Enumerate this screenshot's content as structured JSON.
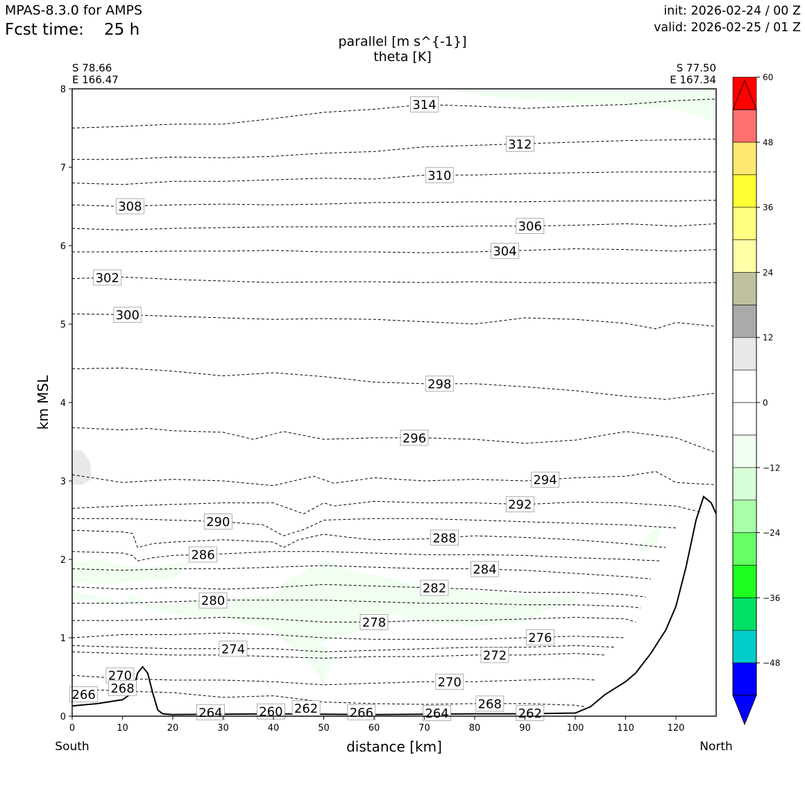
{
  "header": {
    "model": "MPAS-8.3.0 for AMPS",
    "fcst_label": "Fcst time:",
    "fcst_value": "25 h",
    "init": "init: 2026-02-24 / 00 Z",
    "valid": "valid: 2026-02-25 / 01 Z"
  },
  "title_line1": "parallel [m s^{-1}]",
  "title_line2": "theta [K]",
  "endpoints": {
    "left_lat": "S 78.66",
    "left_lon": "E 166.47",
    "right_lat": "S 77.50",
    "right_lon": "E 167.34",
    "south": "South",
    "north": "North"
  },
  "chart_data": {
    "type": "contour",
    "xlabel": "distance [km]",
    "ylabel": "km MSL",
    "xlim": [
      0,
      128
    ],
    "ylim": [
      0,
      8
    ],
    "xticks": [
      0,
      10,
      20,
      30,
      40,
      50,
      60,
      70,
      80,
      90,
      100,
      110,
      120
    ],
    "yticks": [
      0,
      1,
      2,
      3,
      4,
      5,
      6,
      7,
      8
    ],
    "colorbar": {
      "min": -54,
      "max": 54,
      "step": 6,
      "tick_values": [
        -48,
        -36,
        -24,
        -12,
        0,
        12,
        24,
        36,
        48,
        60
      ],
      "tick_labels": [
        "−48",
        "−36",
        "−24",
        "−12",
        "0",
        "12",
        "24",
        "36",
        "48",
        "60"
      ],
      "colors": [
        "#0000ff",
        "#00cccc",
        "#00e066",
        "#1fff1f",
        "#66ff66",
        "#aaffaa",
        "#d8ffd8",
        "#f1fff1",
        "#ffffff",
        "#ffffff",
        "#e8e8e8",
        "#aaaaaa",
        "#c0c0a0",
        "#ffffa8",
        "#ffff80",
        "#ffff33",
        "#ffe870",
        "#ff7070",
        "#ff0000"
      ],
      "under_color": "#0000ff",
      "over_color": "#ff0000"
    },
    "terrain": {
      "x": [
        0,
        5,
        10,
        12,
        13,
        14,
        15,
        16,
        17,
        18,
        20,
        40,
        60,
        80,
        90,
        100,
        103,
        106,
        108,
        110,
        112,
        115,
        118,
        120,
        122,
        124,
        125.5,
        127,
        128
      ],
      "y": [
        0.13,
        0.16,
        0.21,
        0.3,
        0.55,
        0.63,
        0.55,
        0.3,
        0.08,
        0.03,
        0.02,
        0.03,
        0.02,
        0.03,
        0.03,
        0.04,
        0.12,
        0.28,
        0.36,
        0.44,
        0.55,
        0.8,
        1.1,
        1.4,
        1.9,
        2.5,
        2.8,
        2.72,
        2.58
      ]
    },
    "theta_levels": [
      {
        "value": 314,
        "label": "314",
        "label_x": 70,
        "x": [
          0,
          10,
          20,
          30,
          40,
          50,
          60,
          70,
          80,
          90,
          100,
          110,
          120,
          128
        ],
        "y": [
          7.5,
          7.52,
          7.55,
          7.55,
          7.62,
          7.7,
          7.74,
          7.8,
          7.78,
          7.75,
          7.78,
          7.8,
          7.85,
          7.87
        ]
      },
      {
        "value": 312,
        "label": "312",
        "label_x": 89,
        "x": [
          0,
          10,
          20,
          30,
          40,
          50,
          60,
          70,
          80,
          90,
          100,
          110,
          120,
          128
        ],
        "y": [
          7.1,
          7.1,
          7.13,
          7.12,
          7.14,
          7.18,
          7.2,
          7.26,
          7.28,
          7.3,
          7.32,
          7.34,
          7.35,
          7.36
        ]
      },
      {
        "value": 310,
        "label": "310",
        "label_x": 73,
        "x": [
          0,
          10,
          20,
          30,
          40,
          50,
          60,
          70,
          80,
          90,
          100,
          110,
          120,
          128
        ],
        "y": [
          6.8,
          6.78,
          6.82,
          6.82,
          6.84,
          6.86,
          6.85,
          6.9,
          6.9,
          6.92,
          6.93,
          6.94,
          6.94,
          6.94
        ]
      },
      {
        "value": 308,
        "label": "308",
        "label_x": 11.5,
        "x": [
          0,
          10,
          20,
          30,
          40,
          50,
          60,
          70,
          80,
          90,
          100,
          110,
          120,
          128
        ],
        "y": [
          6.52,
          6.5,
          6.52,
          6.53,
          6.52,
          6.53,
          6.55,
          6.55,
          6.56,
          6.56,
          6.57,
          6.57,
          6.57,
          6.58
        ]
      },
      {
        "value": 306,
        "label": "306",
        "label_x": 91,
        "x": [
          0,
          10,
          20,
          30,
          40,
          50,
          60,
          70,
          80,
          90,
          100,
          110,
          120,
          128
        ],
        "y": [
          6.22,
          6.2,
          6.22,
          6.23,
          6.24,
          6.24,
          6.24,
          6.24,
          6.25,
          6.25,
          6.26,
          6.28,
          6.25,
          6.28
        ]
      },
      {
        "value": 304,
        "label": "304",
        "label_x": 86,
        "x": [
          0,
          10,
          20,
          30,
          40,
          50,
          60,
          70,
          80,
          90,
          100,
          110,
          120,
          128
        ],
        "y": [
          5.92,
          5.92,
          5.93,
          5.93,
          5.94,
          5.92,
          5.92,
          5.91,
          5.92,
          5.94,
          5.96,
          5.95,
          5.93,
          5.95
        ]
      },
      {
        "value": 302,
        "label": "302",
        "label_x": 7,
        "x": [
          0,
          10,
          20,
          30,
          40,
          50,
          60,
          70,
          80,
          90,
          100,
          110,
          120,
          128
        ],
        "y": [
          5.58,
          5.6,
          5.57,
          5.55,
          5.53,
          5.54,
          5.54,
          5.53,
          5.54,
          5.53,
          5.53,
          5.52,
          5.52,
          5.53
        ]
      },
      {
        "value": 300,
        "label": "300",
        "label_x": 11,
        "x": [
          0,
          10,
          20,
          30,
          40,
          50,
          60,
          70,
          80,
          90,
          100,
          110,
          116,
          120,
          128
        ],
        "y": [
          5.13,
          5.12,
          5.1,
          5.08,
          5.06,
          5.07,
          5.06,
          5.03,
          5.0,
          5.08,
          5.06,
          5.01,
          4.94,
          5.02,
          4.97
        ]
      },
      {
        "value": 298,
        "label": "298",
        "label_x": 73,
        "x": [
          0,
          10,
          20,
          30,
          40,
          50,
          60,
          70,
          80,
          90,
          100,
          110,
          118,
          128
        ],
        "y": [
          4.43,
          4.44,
          4.4,
          4.34,
          4.38,
          4.33,
          4.26,
          4.24,
          4.24,
          4.2,
          4.15,
          4.08,
          4.04,
          4.12
        ]
      },
      {
        "value": 296,
        "label": "296",
        "label_x": 68,
        "x": [
          0,
          10,
          15,
          20,
          30,
          36,
          42,
          50,
          60,
          70,
          80,
          90,
          100,
          110,
          120,
          128
        ],
        "y": [
          3.68,
          3.65,
          3.67,
          3.64,
          3.62,
          3.53,
          3.63,
          3.53,
          3.55,
          3.55,
          3.53,
          3.48,
          3.52,
          3.63,
          3.55,
          3.36
        ]
      },
      {
        "value": 294,
        "label": "294",
        "label_x": 94,
        "x": [
          0,
          10,
          20,
          30,
          40,
          48,
          52,
          60,
          70,
          80,
          90,
          100,
          110,
          116,
          120,
          128
        ],
        "y": [
          3.08,
          2.98,
          3.02,
          3.0,
          2.94,
          3.06,
          2.97,
          3.04,
          3.0,
          3.02,
          3.0,
          3.04,
          3.06,
          3.12,
          2.98,
          2.95
        ]
      },
      {
        "value": 292,
        "label": "292",
        "label_x": 89,
        "x": [
          0,
          10,
          20,
          30,
          40,
          46,
          50,
          52,
          60,
          70,
          80,
          90,
          100,
          110,
          120,
          125
        ],
        "y": [
          2.65,
          2.68,
          2.7,
          2.72,
          2.72,
          2.58,
          2.72,
          2.68,
          2.74,
          2.72,
          2.72,
          2.7,
          2.73,
          2.72,
          2.68,
          2.6
        ]
      },
      {
        "value": 290,
        "label": "290",
        "label_x": 29,
        "x": [
          0,
          10,
          20,
          30,
          38,
          42,
          46,
          50,
          60,
          70,
          80,
          90,
          100,
          110,
          120
        ],
        "y": [
          2.52,
          2.52,
          2.5,
          2.48,
          2.44,
          2.3,
          2.38,
          2.5,
          2.52,
          2.52,
          2.5,
          2.48,
          2.46,
          2.44,
          2.4
        ]
      },
      {
        "value": 288,
        "label": "288",
        "label_x": 74,
        "x": [
          0,
          10,
          12,
          13,
          16,
          20,
          30,
          40,
          42,
          45,
          50,
          55,
          60,
          70,
          80,
          90,
          100,
          110,
          118
        ],
        "y": [
          2.37,
          2.35,
          2.33,
          2.15,
          2.2,
          2.22,
          2.25,
          2.22,
          2.15,
          2.25,
          2.32,
          2.28,
          2.25,
          2.26,
          2.3,
          2.28,
          2.25,
          2.2,
          2.15
        ]
      },
      {
        "value": 286,
        "label": "286",
        "label_x": 26,
        "x": [
          0,
          10,
          12,
          13,
          16,
          20,
          30,
          40,
          50,
          60,
          70,
          80,
          90,
          100,
          110,
          117
        ],
        "y": [
          2.1,
          2.08,
          2.05,
          1.98,
          2.02,
          2.05,
          2.07,
          2.1,
          2.1,
          2.08,
          2.06,
          2.06,
          2.05,
          2.02,
          2.0,
          1.98
        ]
      },
      {
        "value": 284,
        "label": "284",
        "label_x": 82,
        "x": [
          0,
          10,
          20,
          30,
          40,
          50,
          60,
          70,
          80,
          90,
          100,
          110,
          115
        ],
        "y": [
          1.88,
          1.86,
          1.88,
          1.88,
          1.9,
          1.92,
          1.9,
          1.88,
          1.88,
          1.86,
          1.82,
          1.78,
          1.75
        ]
      },
      {
        "value": 282,
        "label": "282",
        "label_x": 72,
        "x": [
          0,
          10,
          20,
          30,
          40,
          50,
          60,
          70,
          80,
          90,
          100,
          110,
          114
        ],
        "y": [
          1.65,
          1.62,
          1.64,
          1.62,
          1.64,
          1.68,
          1.66,
          1.64,
          1.62,
          1.58,
          1.58,
          1.55,
          1.52
        ]
      },
      {
        "value": 280,
        "label": "280",
        "label_x": 28,
        "x": [
          0,
          10,
          20,
          30,
          40,
          50,
          60,
          70,
          80,
          90,
          100,
          110,
          113
        ],
        "y": [
          1.44,
          1.44,
          1.46,
          1.48,
          1.48,
          1.48,
          1.46,
          1.44,
          1.44,
          1.42,
          1.42,
          1.4,
          1.38
        ]
      },
      {
        "value": 278,
        "label": "278",
        "label_x": 60,
        "x": [
          0,
          10,
          20,
          30,
          40,
          50,
          60,
          70,
          80,
          90,
          100,
          110,
          112
        ],
        "y": [
          1.22,
          1.22,
          1.24,
          1.26,
          1.24,
          1.2,
          1.2,
          1.22,
          1.22,
          1.24,
          1.26,
          1.24,
          1.2
        ]
      },
      {
        "value": 276,
        "label": "276",
        "label_x": 93,
        "x": [
          0,
          10,
          20,
          30,
          40,
          50,
          60,
          70,
          80,
          90,
          100,
          110
        ],
        "y": [
          1.0,
          1.04,
          1.04,
          1.06,
          1.04,
          1.0,
          0.98,
          0.98,
          0.98,
          1.0,
          1.02,
          1.0
        ]
      },
      {
        "value": 274,
        "label": "274",
        "label_x": 32,
        "x": [
          0,
          10,
          20,
          30,
          40,
          50,
          60,
          70,
          80,
          90,
          100,
          108
        ],
        "y": [
          0.9,
          0.88,
          0.86,
          0.86,
          0.86,
          0.82,
          0.84,
          0.86,
          0.88,
          0.88,
          0.9,
          0.88
        ]
      },
      {
        "value": 272,
        "label": "272",
        "label_x": 84,
        "x": [
          0,
          10,
          20,
          30,
          40,
          50,
          60,
          70,
          80,
          90,
          100,
          106
        ],
        "y": [
          0.82,
          0.8,
          0.78,
          0.78,
          0.76,
          0.74,
          0.76,
          0.76,
          0.78,
          0.78,
          0.8,
          0.78
        ]
      },
      {
        "value": 270,
        "label": "270",
        "label_x": 75,
        "x": [
          0,
          10,
          20,
          30,
          40,
          50,
          60,
          70,
          80,
          90,
          100,
          104
        ],
        "y": [
          0.52,
          0.48,
          0.46,
          0.46,
          0.44,
          0.4,
          0.42,
          0.44,
          0.44,
          0.46,
          0.48,
          0.46
        ]
      },
      {
        "value": 268,
        "label": "268",
        "label_x": 83,
        "x": [
          0,
          10,
          20,
          30,
          40,
          50,
          60,
          70,
          80,
          90,
          100,
          102
        ],
        "y": [
          0.35,
          0.32,
          0.3,
          0.24,
          0.26,
          0.18,
          0.16,
          0.15,
          0.16,
          0.16,
          0.14,
          0.12
        ]
      }
    ],
    "extra_labels": [
      {
        "label": "270",
        "x": 9.5,
        "y": 0.52
      },
      {
        "label": "268",
        "x": 10,
        "y": 0.36
      },
      {
        "label": "266",
        "x": 2.3,
        "y": 0.28
      },
      {
        "label": "264",
        "x": 27.5,
        "y": 0.05
      },
      {
        "label": "260",
        "x": 39.5,
        "y": 0.06
      },
      {
        "label": "262",
        "x": 46.5,
        "y": 0.1
      },
      {
        "label": "266",
        "x": 57.5,
        "y": 0.05
      },
      {
        "label": "264",
        "x": 72.5,
        "y": 0.04
      },
      {
        "label": "262",
        "x": 91,
        "y": 0.04
      }
    ],
    "shading": [
      {
        "color": "#f1fff1",
        "x": [
          75,
          80,
          90,
          100,
          110,
          120,
          128,
          128,
          118,
          110,
          100,
          90,
          80
        ],
        "y": [
          8.0,
          7.92,
          7.86,
          7.82,
          7.78,
          7.74,
          7.58,
          8.0,
          8.0,
          8.0,
          8.0,
          8.0,
          8.0
        ]
      },
      {
        "color": "#f1fff1",
        "x": [
          0,
          10,
          20,
          30,
          40,
          42,
          46,
          50,
          56,
          60,
          66,
          70,
          80,
          90,
          96,
          100,
          102,
          100,
          96,
          90,
          80,
          70,
          64,
          60,
          56,
          50,
          45,
          42,
          40,
          30,
          20,
          16,
          12,
          8,
          4,
          0
        ],
        "y": [
          1.6,
          1.45,
          1.42,
          1.5,
          1.55,
          1.7,
          1.85,
          2.0,
          1.85,
          1.8,
          1.72,
          1.65,
          1.6,
          1.55,
          1.5,
          1.55,
          1.52,
          1.48,
          1.4,
          1.2,
          1.15,
          1.2,
          1.3,
          1.2,
          1.05,
          0.95,
          0.85,
          0.95,
          1.1,
          1.25,
          1.3,
          1.35,
          1.55,
          1.4,
          1.5,
          1.45
        ]
      },
      {
        "color": "#f1fff1",
        "x": [
          0,
          5,
          10,
          14,
          18,
          20,
          24,
          20,
          14,
          10,
          5,
          0
        ],
        "y": [
          1.95,
          2.0,
          1.92,
          1.9,
          1.92,
          1.95,
          1.98,
          1.75,
          1.72,
          1.7,
          1.68,
          1.72
        ]
      },
      {
        "color": "#f1fff1",
        "x": [
          45,
          48,
          50,
          52,
          50,
          47,
          45
        ],
        "y": [
          0.85,
          0.6,
          0.38,
          0.75,
          0.9,
          0.92,
          0.85
        ]
      },
      {
        "color": "#f1fff1",
        "x": [
          112,
          116,
          118,
          116,
          113
        ],
        "y": [
          2.15,
          2.4,
          2.55,
          2.2,
          2.1
        ]
      },
      {
        "color": "#e8e8e8",
        "x": [
          0,
          2,
          3.5,
          3.8,
          2,
          0
        ],
        "y": [
          3.4,
          3.38,
          3.25,
          3.02,
          2.95,
          2.95
        ]
      }
    ]
  }
}
